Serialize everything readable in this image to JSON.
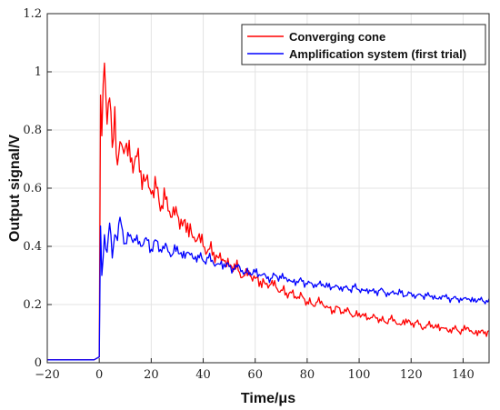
{
  "chart_data": {
    "type": "line",
    "xlabel": "Time/μs",
    "ylabel": "Output signal/V",
    "xlim": [
      -20,
      150
    ],
    "ylim": [
      0,
      1.2
    ],
    "xticks": [
      -20,
      0,
      20,
      40,
      60,
      80,
      100,
      120,
      140
    ],
    "yticks": [
      0,
      0.2,
      0.4,
      0.6,
      0.8,
      1,
      1.2
    ],
    "ytick_labels": [
      "0",
      "0.2",
      "0.4",
      "0.6",
      "0.8",
      "1",
      "1.2"
    ],
    "grid": true,
    "legend_position": "top-right",
    "series": [
      {
        "name": "Converging cone",
        "color": "#ff0000",
        "x": [
          -20,
          -10,
          -2,
          0,
          0.5,
          1,
          2,
          3,
          4,
          5,
          6,
          7,
          8,
          10,
          12,
          14,
          16,
          18,
          20,
          22,
          24,
          26,
          28,
          30,
          32,
          34,
          36,
          38,
          40,
          42,
          44,
          46,
          48,
          50,
          52,
          54,
          56,
          58,
          60,
          62,
          64,
          66,
          68,
          70,
          72,
          74,
          76,
          78,
          80,
          82,
          84,
          86,
          88,
          90,
          92,
          94,
          96,
          98,
          100,
          102,
          104,
          106,
          108,
          110,
          112,
          114,
          116,
          118,
          120,
          122,
          124,
          126,
          128,
          130,
          132,
          134,
          136,
          138,
          140,
          142,
          144,
          146,
          148,
          150
        ],
        "y": [
          0.01,
          0.01,
          0.01,
          0.02,
          0.92,
          0.78,
          1.03,
          0.82,
          0.91,
          0.74,
          0.88,
          0.68,
          0.76,
          0.74,
          0.69,
          0.71,
          0.66,
          0.63,
          0.58,
          0.6,
          0.54,
          0.57,
          0.5,
          0.51,
          0.47,
          0.48,
          0.43,
          0.43,
          0.4,
          0.39,
          0.38,
          0.36,
          0.35,
          0.33,
          0.34,
          0.31,
          0.3,
          0.3,
          0.29,
          0.28,
          0.27,
          0.27,
          0.26,
          0.25,
          0.24,
          0.24,
          0.22,
          0.23,
          0.21,
          0.2,
          0.21,
          0.2,
          0.19,
          0.18,
          0.19,
          0.17,
          0.18,
          0.16,
          0.17,
          0.16,
          0.15,
          0.16,
          0.15,
          0.14,
          0.15,
          0.14,
          0.13,
          0.15,
          0.13,
          0.14,
          0.12,
          0.13,
          0.13,
          0.12,
          0.12,
          0.11,
          0.12,
          0.11,
          0.11,
          0.12,
          0.1,
          0.11,
          0.1,
          0.11
        ]
      },
      {
        "name": "Amplification system (first trial)",
        "color": "#0000ff",
        "x": [
          -20,
          -10,
          -2,
          0,
          0.5,
          1,
          2,
          3,
          4,
          5,
          6,
          7,
          8,
          10,
          12,
          14,
          16,
          18,
          20,
          22,
          24,
          26,
          28,
          30,
          32,
          34,
          36,
          38,
          40,
          42,
          44,
          46,
          48,
          50,
          52,
          54,
          56,
          58,
          60,
          62,
          64,
          66,
          68,
          70,
          72,
          74,
          76,
          78,
          80,
          82,
          84,
          86,
          88,
          90,
          92,
          94,
          96,
          98,
          100,
          102,
          104,
          106,
          108,
          110,
          112,
          114,
          116,
          118,
          120,
          122,
          124,
          126,
          128,
          130,
          132,
          134,
          136,
          138,
          140,
          142,
          144,
          146,
          148,
          150
        ],
        "y": [
          0.01,
          0.01,
          0.01,
          0.02,
          0.47,
          0.3,
          0.44,
          0.38,
          0.48,
          0.36,
          0.44,
          0.42,
          0.5,
          0.41,
          0.44,
          0.42,
          0.4,
          0.43,
          0.39,
          0.42,
          0.38,
          0.4,
          0.37,
          0.4,
          0.36,
          0.38,
          0.36,
          0.37,
          0.35,
          0.36,
          0.34,
          0.34,
          0.34,
          0.33,
          0.32,
          0.33,
          0.31,
          0.31,
          0.31,
          0.3,
          0.3,
          0.29,
          0.3,
          0.29,
          0.29,
          0.28,
          0.28,
          0.28,
          0.27,
          0.27,
          0.27,
          0.27,
          0.26,
          0.26,
          0.26,
          0.26,
          0.25,
          0.26,
          0.25,
          0.25,
          0.25,
          0.24,
          0.25,
          0.24,
          0.24,
          0.24,
          0.24,
          0.23,
          0.24,
          0.23,
          0.23,
          0.23,
          0.23,
          0.22,
          0.23,
          0.22,
          0.22,
          0.22,
          0.22,
          0.22,
          0.21,
          0.22,
          0.21,
          0.22
        ]
      }
    ]
  }
}
